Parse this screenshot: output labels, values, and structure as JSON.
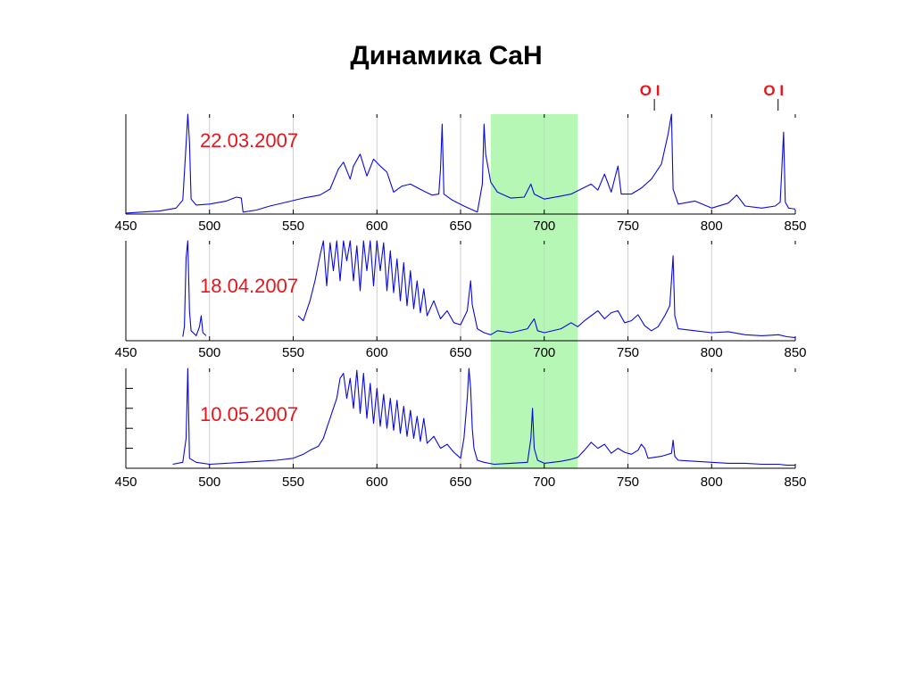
{
  "page_title": "Динамика CaH",
  "colors": {
    "line": "#0a0adc",
    "highlight": "#b6f7b6",
    "date": "#e8161b",
    "marker": "#e8161b",
    "grid": "#cfcfcf"
  },
  "chart_data": [
    {
      "type": "line",
      "date_label": "22.03.2007",
      "x_ticks": [
        "450",
        "500",
        "550",
        "600",
        "650",
        "700",
        "750",
        "800",
        "850"
      ],
      "xlim": [
        450,
        850
      ],
      "grid": "vertical",
      "highlight_band": [
        668,
        720
      ],
      "annotations": [
        {
          "label": "O I",
          "x": 777
        },
        {
          "label": "O I",
          "x": 844
        }
      ],
      "points": [
        [
          450,
          1
        ],
        [
          470,
          3
        ],
        [
          480,
          6
        ],
        [
          484,
          14
        ],
        [
          486,
          70
        ],
        [
          487,
          100
        ],
        [
          488,
          72
        ],
        [
          489,
          15
        ],
        [
          492,
          9
        ],
        [
          500,
          10
        ],
        [
          510,
          13
        ],
        [
          516,
          17
        ],
        [
          519,
          16
        ],
        [
          520,
          2
        ],
        [
          528,
          4
        ],
        [
          536,
          8
        ],
        [
          546,
          12
        ],
        [
          556,
          16
        ],
        [
          566,
          19
        ],
        [
          572,
          25
        ],
        [
          577,
          45
        ],
        [
          580,
          52
        ],
        [
          584,
          35
        ],
        [
          586,
          48
        ],
        [
          590,
          60
        ],
        [
          594,
          38
        ],
        [
          598,
          55
        ],
        [
          602,
          48
        ],
        [
          606,
          42
        ],
        [
          610,
          22
        ],
        [
          615,
          28
        ],
        [
          620,
          30
        ],
        [
          628,
          23
        ],
        [
          633,
          19
        ],
        [
          637,
          20
        ],
        [
          638,
          45
        ],
        [
          639,
          90
        ],
        [
          640,
          20
        ],
        [
          645,
          14
        ],
        [
          652,
          8
        ],
        [
          660,
          2
        ],
        [
          663,
          30
        ],
        [
          664,
          90
        ],
        [
          665,
          60
        ],
        [
          668,
          32
        ],
        [
          672,
          22
        ],
        [
          680,
          16
        ],
        [
          688,
          17
        ],
        [
          692,
          30
        ],
        [
          694,
          20
        ],
        [
          700,
          15
        ],
        [
          710,
          18
        ],
        [
          716,
          20
        ],
        [
          722,
          25
        ],
        [
          728,
          30
        ],
        [
          732,
          24
        ],
        [
          736,
          40
        ],
        [
          740,
          22
        ],
        [
          744,
          48
        ],
        [
          746,
          20
        ],
        [
          752,
          20
        ],
        [
          758,
          26
        ],
        [
          764,
          35
        ],
        [
          770,
          50
        ],
        [
          774,
          80
        ],
        [
          776,
          100
        ],
        [
          777,
          25
        ],
        [
          780,
          10
        ],
        [
          790,
          13
        ],
        [
          800,
          6
        ],
        [
          810,
          11
        ],
        [
          815,
          19
        ],
        [
          820,
          8
        ],
        [
          830,
          6
        ],
        [
          838,
          8
        ],
        [
          841,
          12
        ],
        [
          843,
          82
        ],
        [
          844,
          12
        ],
        [
          846,
          6
        ],
        [
          850,
          5
        ]
      ]
    },
    {
      "type": "line",
      "date_label": "18.04.2007",
      "x_ticks": [
        "450",
        "500",
        "550",
        "600",
        "650",
        "700",
        "750",
        "800",
        "850"
      ],
      "xlim": [
        450,
        850
      ],
      "grid": "vertical",
      "highlight_band": [
        668,
        720
      ],
      "points": [
        [
          484,
          4
        ],
        [
          485,
          14
        ],
        [
          486,
          83
        ],
        [
          487,
          100
        ],
        [
          488,
          30
        ],
        [
          489,
          10
        ],
        [
          492,
          5
        ],
        [
          494,
          14
        ],
        [
          495,
          25
        ],
        [
          496,
          8
        ],
        [
          498,
          5
        ],
        [
          553,
          25
        ],
        [
          556,
          20
        ],
        [
          560,
          40
        ],
        [
          563,
          60
        ],
        [
          566,
          85
        ],
        [
          568,
          100
        ],
        [
          570,
          55
        ],
        [
          572,
          98
        ],
        [
          574,
          70
        ],
        [
          576,
          100
        ],
        [
          578,
          60
        ],
        [
          580,
          100
        ],
        [
          582,
          80
        ],
        [
          584,
          100
        ],
        [
          586,
          60
        ],
        [
          588,
          95
        ],
        [
          590,
          50
        ],
        [
          592,
          100
        ],
        [
          594,
          70
        ],
        [
          596,
          100
        ],
        [
          598,
          55
        ],
        [
          600,
          100
        ],
        [
          602,
          70
        ],
        [
          604,
          98
        ],
        [
          606,
          50
        ],
        [
          608,
          90
        ],
        [
          610,
          48
        ],
        [
          612,
          82
        ],
        [
          614,
          40
        ],
        [
          616,
          78
        ],
        [
          618,
          35
        ],
        [
          620,
          70
        ],
        [
          622,
          32
        ],
        [
          624,
          60
        ],
        [
          626,
          28
        ],
        [
          628,
          52
        ],
        [
          630,
          25
        ],
        [
          634,
          40
        ],
        [
          638,
          22
        ],
        [
          642,
          30
        ],
        [
          646,
          18
        ],
        [
          650,
          16
        ],
        [
          654,
          30
        ],
        [
          656,
          60
        ],
        [
          657,
          36
        ],
        [
          660,
          12
        ],
        [
          664,
          8
        ],
        [
          668,
          6
        ],
        [
          672,
          10
        ],
        [
          680,
          8
        ],
        [
          690,
          12
        ],
        [
          694,
          22
        ],
        [
          696,
          10
        ],
        [
          700,
          8
        ],
        [
          710,
          12
        ],
        [
          716,
          18
        ],
        [
          720,
          14
        ],
        [
          724,
          20
        ],
        [
          728,
          25
        ],
        [
          732,
          30
        ],
        [
          736,
          22
        ],
        [
          740,
          28
        ],
        [
          744,
          30
        ],
        [
          748,
          18
        ],
        [
          752,
          20
        ],
        [
          756,
          26
        ],
        [
          760,
          15
        ],
        [
          764,
          10
        ],
        [
          768,
          14
        ],
        [
          772,
          25
        ],
        [
          775,
          35
        ],
        [
          777,
          85
        ],
        [
          778,
          25
        ],
        [
          780,
          12
        ],
        [
          790,
          10
        ],
        [
          800,
          8
        ],
        [
          810,
          9
        ],
        [
          820,
          6
        ],
        [
          830,
          5
        ],
        [
          840,
          6
        ],
        [
          845,
          4
        ],
        [
          850,
          3
        ]
      ]
    },
    {
      "type": "line",
      "date_label": "10.05.2007",
      "x_ticks": [
        "450",
        "500",
        "550",
        "600",
        "650",
        "700",
        "750",
        "800",
        "850"
      ],
      "xlim": [
        450,
        850
      ],
      "grid": "vertical",
      "highlight_band": [
        668,
        720
      ],
      "points": [
        [
          478,
          4
        ],
        [
          484,
          6
        ],
        [
          486,
          30
        ],
        [
          487,
          100
        ],
        [
          488,
          10
        ],
        [
          492,
          6
        ],
        [
          500,
          4
        ],
        [
          510,
          5
        ],
        [
          520,
          6
        ],
        [
          530,
          7
        ],
        [
          540,
          8
        ],
        [
          550,
          10
        ],
        [
          556,
          14
        ],
        [
          560,
          18
        ],
        [
          565,
          22
        ],
        [
          568,
          30
        ],
        [
          570,
          40
        ],
        [
          572,
          50
        ],
        [
          574,
          60
        ],
        [
          576,
          70
        ],
        [
          578,
          90
        ],
        [
          580,
          95
        ],
        [
          582,
          70
        ],
        [
          584,
          90
        ],
        [
          586,
          60
        ],
        [
          588,
          98
        ],
        [
          590,
          55
        ],
        [
          592,
          95
        ],
        [
          594,
          50
        ],
        [
          596,
          85
        ],
        [
          598,
          45
        ],
        [
          600,
          80
        ],
        [
          602,
          42
        ],
        [
          604,
          74
        ],
        [
          606,
          40
        ],
        [
          608,
          70
        ],
        [
          610,
          38
        ],
        [
          612,
          68
        ],
        [
          614,
          35
        ],
        [
          616,
          62
        ],
        [
          618,
          32
        ],
        [
          620,
          58
        ],
        [
          622,
          30
        ],
        [
          624,
          52
        ],
        [
          626,
          27
        ],
        [
          628,
          50
        ],
        [
          630,
          25
        ],
        [
          634,
          32
        ],
        [
          638,
          20
        ],
        [
          642,
          24
        ],
        [
          646,
          16
        ],
        [
          650,
          10
        ],
        [
          652,
          30
        ],
        [
          654,
          70
        ],
        [
          655,
          100
        ],
        [
          656,
          80
        ],
        [
          657,
          40
        ],
        [
          658,
          20
        ],
        [
          660,
          8
        ],
        [
          664,
          6
        ],
        [
          670,
          4
        ],
        [
          680,
          5
        ],
        [
          690,
          6
        ],
        [
          692,
          30
        ],
        [
          693,
          60
        ],
        [
          694,
          20
        ],
        [
          696,
          8
        ],
        [
          700,
          5
        ],
        [
          710,
          7
        ],
        [
          716,
          9
        ],
        [
          720,
          11
        ],
        [
          724,
          18
        ],
        [
          728,
          26
        ],
        [
          732,
          20
        ],
        [
          736,
          24
        ],
        [
          740,
          15
        ],
        [
          744,
          20
        ],
        [
          748,
          16
        ],
        [
          752,
          14
        ],
        [
          756,
          18
        ],
        [
          758,
          24
        ],
        [
          760,
          20
        ],
        [
          762,
          10
        ],
        [
          770,
          12
        ],
        [
          776,
          15
        ],
        [
          777,
          28
        ],
        [
          778,
          12
        ],
        [
          780,
          8
        ],
        [
          790,
          7
        ],
        [
          800,
          6
        ],
        [
          810,
          5
        ],
        [
          820,
          5
        ],
        [
          830,
          4
        ],
        [
          840,
          4
        ],
        [
          845,
          3
        ],
        [
          850,
          3
        ]
      ]
    }
  ]
}
